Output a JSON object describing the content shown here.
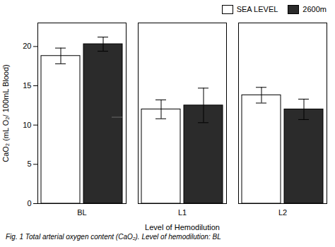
{
  "chart_data": {
    "type": "bar",
    "xlabel": "Level of Hemodilution",
    "ylabel": "CaO₂ (mL O₂/ 100mL Blood)",
    "caption": "Fig. 1  Total arterial oxygen content (CaO₂). Level of hemodilution: BL",
    "categories": [
      "BL",
      "L1",
      "L2"
    ],
    "series": [
      {
        "name": "SEA LEVEL",
        "color": "#ffffff",
        "values": [
          18.8,
          12.0,
          13.8
        ],
        "errors": [
          1.0,
          1.2,
          1.0
        ]
      },
      {
        "name": "2600m",
        "color": "#2b2b2b",
        "values": [
          20.3,
          12.5,
          12.0
        ],
        "errors": [
          0.9,
          2.2,
          1.3
        ],
        "notch_values": [
          11.0,
          null,
          null
        ]
      }
    ],
    "ylim": [
      0,
      23
    ],
    "yticks": [
      0,
      5,
      10,
      15,
      20
    ],
    "legend": "upper right",
    "grid": false
  }
}
